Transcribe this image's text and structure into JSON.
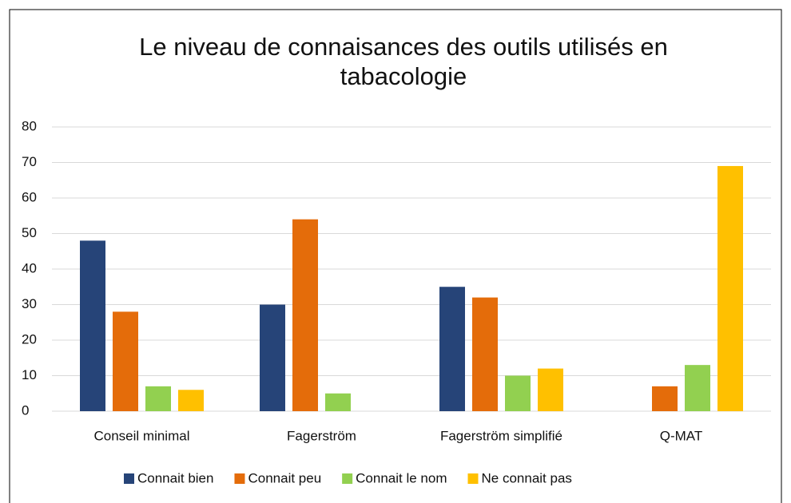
{
  "chart_data": {
    "type": "bar",
    "title": "Le niveau de connaisances des outils utilisés en tabacologie",
    "categories": [
      "Conseil minimal",
      "Fagerström",
      "Fagerström simplifié",
      "Q-MAT"
    ],
    "series": [
      {
        "name": "Connait bien",
        "color": "#264478",
        "values": [
          48,
          30,
          35,
          0
        ]
      },
      {
        "name": "Connait peu",
        "color": "#e46c0a",
        "values": [
          28,
          54,
          32,
          7
        ]
      },
      {
        "name": "Connait le nom",
        "color": "#92d050",
        "values": [
          7,
          5,
          10,
          13
        ]
      },
      {
        "name": "Ne connait pas",
        "color": "#ffc000",
        "values": [
          6,
          0,
          12,
          69
        ]
      }
    ],
    "ylim": [
      0,
      80
    ],
    "yticks": [
      0,
      10,
      20,
      30,
      40,
      50,
      60,
      70,
      80
    ],
    "grid": true,
    "legend": "bottom"
  }
}
